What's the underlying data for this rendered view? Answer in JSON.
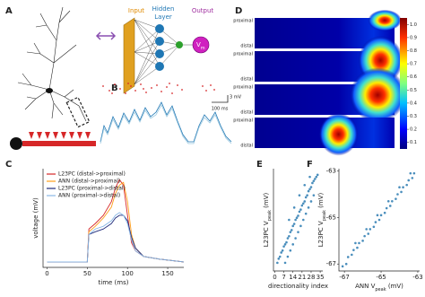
{
  "panel_labels": [
    "A",
    "B",
    "C",
    "D",
    "E",
    "F"
  ],
  "network": {
    "input": "Input",
    "hidden": [
      "Hidden",
      "Layer"
    ],
    "output": "Output",
    "vm": [
      "V",
      "m"
    ]
  },
  "traces": {
    "scale_mv": "3 mV",
    "scale_ms": "100 ms"
  },
  "heatmap": {
    "rows": [
      {
        "top": "proximal",
        "bottom": "distal"
      },
      {
        "top": "proximal",
        "bottom": "distal"
      },
      {
        "top": "proximal",
        "bottom": "distal"
      },
      {
        "top": "proximal",
        "bottom": "distal"
      }
    ],
    "clim": [
      0.05,
      1.05
    ],
    "cticks": [
      {
        "value": 1,
        "label": "1.0"
      },
      0.9,
      0.8,
      0.7,
      0.6,
      0.5,
      0.4,
      0.3,
      0.2,
      0.1
    ]
  },
  "chart_data": [
    {
      "type": "line",
      "xlabel": "time (ms)",
      "ylabel": [
        "voltage (mV)"
      ],
      "legend": "upper left",
      "xlim": [
        -5,
        170
      ],
      "ylim": [
        -74,
        -38
      ],
      "xticks": [
        0,
        50,
        100,
        150
      ],
      "x": [
        0,
        45,
        50,
        52,
        60,
        70,
        80,
        85,
        90,
        95,
        100,
        105,
        110,
        120,
        140,
        170
      ],
      "series": [
        {
          "name": "L23PC (distal->proximal)",
          "color": "#d62728",
          "values": [
            -72,
            -72,
            -72,
            -60,
            -58,
            -55,
            -50,
            -45,
            -42,
            -44,
            -55,
            -65,
            -68,
            -70,
            -71,
            -72
          ]
        },
        {
          "name": "ANN (distal->proximal)",
          "color": "#ff9f1c",
          "values": [
            -72,
            -72,
            -72,
            -61,
            -59,
            -56,
            -52,
            -47,
            -44,
            -43,
            -50,
            -62,
            -67,
            -70,
            -71,
            -72
          ]
        },
        {
          "name": "L23PC (proximal->distal)",
          "color": "#1f2a7a",
          "values": [
            -72,
            -72,
            -72,
            -62,
            -61,
            -60,
            -58,
            -56,
            -55,
            -55,
            -57,
            -63,
            -67,
            -70,
            -71,
            -72
          ]
        },
        {
          "name": "ANN (proximal->distal)",
          "color": "#8ab8e6",
          "values": [
            -72,
            -72,
            -72,
            -62,
            -60,
            -59,
            -57,
            -55,
            -54,
            -55,
            -58,
            -64,
            -68,
            -70,
            -71,
            -72
          ]
        }
      ]
    },
    {
      "type": "scatter",
      "xlabel": "directionality index",
      "ylabel": [
        "L23PC V",
        "peak",
        " (mV)"
      ],
      "xlim": [
        -1,
        37
      ],
      "ylim": [
        -67.3,
        -62.3
      ],
      "xticks": [
        0,
        7,
        14,
        21,
        28,
        35
      ],
      "series": [
        {
          "color": "#2a7ab0",
          "x": [
            2,
            3,
            4,
            5,
            6,
            7,
            8,
            9,
            10,
            11,
            12,
            13,
            14,
            15,
            16,
            17,
            18,
            19,
            20,
            21,
            22,
            23,
            24,
            25,
            26,
            27,
            28,
            29,
            30,
            31,
            32,
            33,
            8,
            10,
            12,
            14,
            16,
            18,
            20,
            22,
            24,
            26,
            28,
            30,
            11,
            15,
            19,
            23,
            27
          ],
          "values": [
            -66.9,
            -66.7,
            -66.6,
            -66.4,
            -66.3,
            -66.1,
            -66.0,
            -65.9,
            -65.7,
            -65.6,
            -65.4,
            -65.3,
            -65.1,
            -65.0,
            -64.8,
            -64.7,
            -64.6,
            -64.4,
            -64.3,
            -64.1,
            -64.0,
            -63.9,
            -63.7,
            -63.6,
            -63.4,
            -63.3,
            -63.2,
            -63.0,
            -62.9,
            -62.8,
            -62.7,
            -62.6,
            -66.9,
            -66.6,
            -66.3,
            -66.0,
            -65.7,
            -65.4,
            -65.1,
            -64.8,
            -64.5,
            -64.2,
            -63.9,
            -63.6,
            -64.8,
            -64.2,
            -63.6,
            -63.1,
            -62.7
          ]
        }
      ]
    },
    {
      "type": "scatter",
      "xlabel": [
        "ANN V",
        "peak",
        " (mV)"
      ],
      "ylabel": [
        "L23PC V",
        "peak",
        " (mV)"
      ],
      "xlim": [
        -67.3,
        -62.9
      ],
      "ylim": [
        -67.3,
        -62.9
      ],
      "xticks": [
        -67,
        -65,
        -63
      ],
      "yticks": [
        -67,
        -65,
        -63
      ],
      "series": [
        {
          "color": "#2a7ab0",
          "x": [
            -67.1,
            -66.9,
            -66.8,
            -66.6,
            -66.5,
            -66.3,
            -66.2,
            -66.0,
            -65.9,
            -65.7,
            -65.6,
            -65.4,
            -65.3,
            -65.1,
            -65.0,
            -64.8,
            -64.7,
            -64.5,
            -64.4,
            -64.2,
            -64.1,
            -63.9,
            -63.8,
            -63.6,
            -63.5,
            -63.3,
            -63.2,
            -66.4,
            -65.8,
            -65.2,
            -64.6,
            -64.0,
            -63.4
          ],
          "values": [
            -67.1,
            -67.0,
            -66.7,
            -66.6,
            -66.4,
            -66.3,
            -66.1,
            -66.0,
            -65.8,
            -65.7,
            -65.5,
            -65.4,
            -65.2,
            -65.1,
            -64.9,
            -64.8,
            -64.6,
            -64.5,
            -64.3,
            -64.2,
            -64.0,
            -63.9,
            -63.7,
            -63.6,
            -63.4,
            -63.3,
            -63.1,
            -66.1,
            -65.5,
            -64.9,
            -64.3,
            -63.7,
            -63.1
          ]
        }
      ]
    }
  ]
}
